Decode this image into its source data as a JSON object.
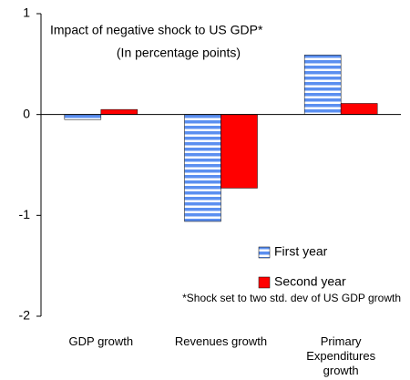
{
  "chart_data": {
    "type": "bar",
    "title": "Impact of  negative shock to US GDP*",
    "subtitle": "(In percentage points)",
    "annotation": "*Shock set to two std. dev of US GDP growth",
    "categories": [
      "GDP growth",
      "Revenues growth",
      "Primary Expenditures growth"
    ],
    "series": [
      {
        "name": "First year",
        "color": "#5b8ff0",
        "pattern": "horizontal-stripes",
        "values": [
          -0.05,
          -1.06,
          0.59
        ]
      },
      {
        "name": "Second year",
        "color": "#ff0000",
        "values": [
          0.05,
          -0.73,
          0.11
        ]
      }
    ],
    "ylim": [
      -2,
      1
    ],
    "yticks": [
      -2,
      -1,
      0,
      1
    ],
    "grid": false,
    "legend": "lower-right"
  }
}
